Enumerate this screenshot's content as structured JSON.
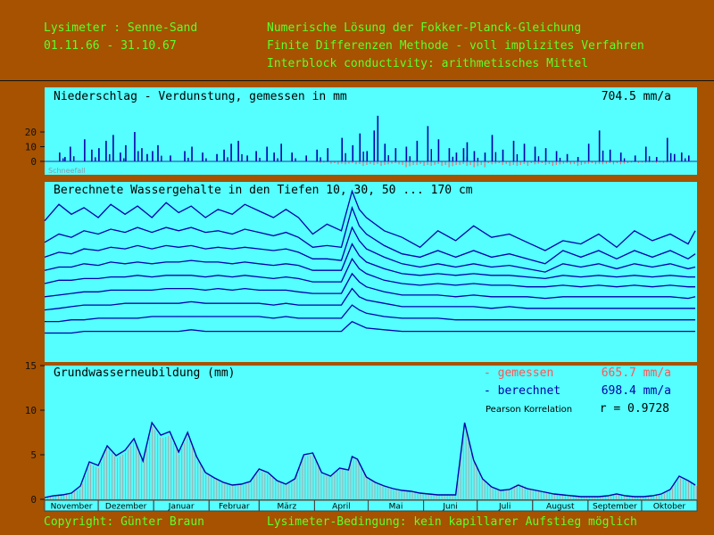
{
  "header": {
    "left_line1": "Lysimeter : Senne-Sand",
    "left_line2": "01.11.66 - 31.10.67",
    "right_line1": "Numerische Lösung der Fokker-Planck-Gleichung",
    "right_line2": "Finite Differenzen Methode - voll implizites Verfahren",
    "right_line3": "Interblock conductivity: arithmetisches Mittel"
  },
  "footer": {
    "left": "Copyright: Günter Braun",
    "right": "Lysimeter-Bedingung: kein kapillarer Aufstieg möglich"
  },
  "colors": {
    "background": "#a65200",
    "panel": "#55ffff",
    "green_text": "#5cff2e",
    "measured": "#ff5555",
    "calculated": "#0000aa",
    "bars": "#a8a8a8"
  },
  "chart_data": [
    {
      "type": "bar",
      "title": "Niederschlag - Verdunstung, gemessen in mm",
      "total": "704.5 mm/a",
      "annotation": "Schneefall",
      "yticks": [
        "20",
        "10",
        "0"
      ],
      "ylim": [
        -6,
        27
      ],
      "series": [
        {
          "name": "Niederschlag",
          "x_day": [
            8,
            11,
            14,
            22,
            26,
            30,
            34,
            38,
            42,
            45,
            50,
            54,
            57,
            60,
            63,
            70,
            78,
            82,
            88,
            96,
            100,
            104,
            108,
            113,
            118,
            124,
            128,
            132,
            138,
            146,
            152,
            158,
            166,
            172,
            176,
            180,
            184,
            186,
            190,
            196,
            202,
            208,
            214,
            220,
            226,
            230,
            234,
            236,
            240,
            246,
            250,
            256,
            262,
            268,
            274,
            280,
            286,
            292,
            298,
            304,
            310,
            316,
            322,
            330,
            336,
            342,
            348,
            352,
            356,
            360
          ],
          "values": [
            6,
            3,
            10,
            15,
            8,
            9,
            14,
            18,
            6,
            11,
            20,
            9,
            5,
            7,
            11,
            4,
            7,
            10,
            6,
            5,
            8,
            12,
            14,
            4,
            7,
            10,
            6,
            12,
            6,
            4,
            8,
            9,
            16,
            11,
            19,
            7,
            21,
            31,
            12,
            9,
            10,
            14,
            24,
            15,
            9,
            6,
            9,
            13,
            7,
            6,
            18,
            8,
            14,
            12,
            10,
            9,
            7,
            5,
            3,
            12,
            21,
            8,
            6,
            4,
            10,
            3,
            16,
            5,
            6,
            4
          ]
        },
        {
          "name": "Verdunstung",
          "x_day": [
            152,
            160,
            168,
            176,
            184,
            192,
            200,
            208,
            216,
            224,
            232,
            240,
            248,
            256,
            264,
            272,
            280,
            288,
            296,
            304,
            312,
            320,
            328,
            336,
            344
          ],
          "values": [
            -1,
            -2,
            -2,
            -3,
            -3,
            -2,
            -4,
            -3,
            -3,
            -4,
            -3,
            -4,
            -2,
            -3,
            -3,
            -2,
            -3,
            -2,
            -3,
            -2,
            -2,
            -2,
            -1,
            -1,
            -1
          ]
        }
      ]
    },
    {
      "type": "line",
      "title": "Berechnete Wassergehalte in den Tiefen 10, 30, 50 ... 170 cm",
      "x_day": [
        0,
        8,
        15,
        22,
        30,
        37,
        45,
        52,
        60,
        68,
        75,
        82,
        90,
        97,
        105,
        112,
        120,
        128,
        135,
        142,
        150,
        158,
        166,
        172,
        176,
        180,
        190,
        200,
        210,
        220,
        230,
        240,
        250,
        260,
        270,
        280,
        290,
        300,
        310,
        320,
        330,
        340,
        350,
        360,
        364
      ],
      "series": [
        {
          "name": "10 cm",
          "values": [
            0.78,
            0.88,
            0.82,
            0.86,
            0.8,
            0.88,
            0.82,
            0.87,
            0.8,
            0.89,
            0.83,
            0.87,
            0.8,
            0.85,
            0.82,
            0.88,
            0.84,
            0.8,
            0.85,
            0.8,
            0.7,
            0.76,
            0.72,
            0.96,
            0.85,
            0.8,
            0.72,
            0.68,
            0.62,
            0.72,
            0.66,
            0.75,
            0.68,
            0.7,
            0.65,
            0.6,
            0.66,
            0.64,
            0.7,
            0.62,
            0.72,
            0.66,
            0.7,
            0.64,
            0.72
          ]
        },
        {
          "name": "30 cm",
          "values": [
            0.65,
            0.7,
            0.68,
            0.72,
            0.7,
            0.73,
            0.71,
            0.74,
            0.71,
            0.74,
            0.72,
            0.74,
            0.71,
            0.72,
            0.7,
            0.73,
            0.71,
            0.69,
            0.71,
            0.68,
            0.62,
            0.63,
            0.62,
            0.86,
            0.75,
            0.7,
            0.63,
            0.58,
            0.56,
            0.6,
            0.56,
            0.6,
            0.56,
            0.58,
            0.55,
            0.52,
            0.6,
            0.56,
            0.6,
            0.55,
            0.6,
            0.56,
            0.6,
            0.55,
            0.58
          ]
        },
        {
          "name": "50 cm",
          "values": [
            0.56,
            0.59,
            0.58,
            0.61,
            0.6,
            0.62,
            0.61,
            0.63,
            0.61,
            0.63,
            0.62,
            0.63,
            0.61,
            0.62,
            0.61,
            0.62,
            0.61,
            0.6,
            0.61,
            0.59,
            0.55,
            0.55,
            0.54,
            0.74,
            0.66,
            0.61,
            0.56,
            0.52,
            0.5,
            0.52,
            0.5,
            0.52,
            0.5,
            0.51,
            0.49,
            0.47,
            0.52,
            0.5,
            0.52,
            0.49,
            0.52,
            0.5,
            0.52,
            0.49,
            0.5
          ]
        },
        {
          "name": "70 cm",
          "values": [
            0.48,
            0.5,
            0.5,
            0.52,
            0.51,
            0.53,
            0.52,
            0.53,
            0.52,
            0.53,
            0.53,
            0.54,
            0.53,
            0.53,
            0.52,
            0.53,
            0.52,
            0.51,
            0.52,
            0.51,
            0.48,
            0.48,
            0.48,
            0.64,
            0.57,
            0.53,
            0.49,
            0.46,
            0.45,
            0.46,
            0.45,
            0.46,
            0.45,
            0.45,
            0.44,
            0.43,
            0.45,
            0.44,
            0.45,
            0.44,
            0.45,
            0.44,
            0.45,
            0.44,
            0.44
          ]
        },
        {
          "name": "90 cm",
          "values": [
            0.4,
            0.42,
            0.42,
            0.43,
            0.43,
            0.44,
            0.44,
            0.45,
            0.44,
            0.45,
            0.45,
            0.45,
            0.44,
            0.45,
            0.44,
            0.45,
            0.44,
            0.43,
            0.44,
            0.43,
            0.41,
            0.41,
            0.41,
            0.55,
            0.49,
            0.46,
            0.42,
            0.4,
            0.39,
            0.4,
            0.39,
            0.4,
            0.39,
            0.39,
            0.38,
            0.38,
            0.39,
            0.38,
            0.39,
            0.38,
            0.39,
            0.38,
            0.39,
            0.38,
            0.38
          ]
        },
        {
          "name": "110 cm",
          "values": [
            0.32,
            0.33,
            0.34,
            0.35,
            0.35,
            0.36,
            0.36,
            0.36,
            0.36,
            0.37,
            0.37,
            0.37,
            0.36,
            0.37,
            0.36,
            0.37,
            0.36,
            0.36,
            0.36,
            0.35,
            0.34,
            0.34,
            0.34,
            0.46,
            0.41,
            0.38,
            0.35,
            0.33,
            0.33,
            0.33,
            0.32,
            0.33,
            0.32,
            0.32,
            0.32,
            0.31,
            0.32,
            0.32,
            0.32,
            0.32,
            0.32,
            0.32,
            0.32,
            0.31,
            0.32
          ]
        },
        {
          "name": "130 cm",
          "values": [
            0.24,
            0.25,
            0.26,
            0.27,
            0.27,
            0.27,
            0.28,
            0.28,
            0.28,
            0.28,
            0.28,
            0.29,
            0.28,
            0.28,
            0.28,
            0.28,
            0.28,
            0.27,
            0.28,
            0.27,
            0.27,
            0.27,
            0.27,
            0.37,
            0.32,
            0.3,
            0.28,
            0.26,
            0.26,
            0.26,
            0.26,
            0.26,
            0.25,
            0.26,
            0.25,
            0.25,
            0.25,
            0.25,
            0.25,
            0.25,
            0.25,
            0.25,
            0.25,
            0.25,
            0.25
          ]
        },
        {
          "name": "150 cm",
          "values": [
            0.17,
            0.17,
            0.18,
            0.18,
            0.19,
            0.19,
            0.19,
            0.19,
            0.2,
            0.2,
            0.2,
            0.2,
            0.2,
            0.2,
            0.2,
            0.2,
            0.2,
            0.19,
            0.2,
            0.19,
            0.19,
            0.19,
            0.19,
            0.27,
            0.24,
            0.22,
            0.2,
            0.19,
            0.19,
            0.19,
            0.18,
            0.18,
            0.18,
            0.18,
            0.18,
            0.18,
            0.18,
            0.18,
            0.18,
            0.18,
            0.18,
            0.18,
            0.18,
            0.18,
            0.18
          ]
        },
        {
          "name": "170 cm",
          "values": [
            0.1,
            0.1,
            0.1,
            0.11,
            0.11,
            0.11,
            0.11,
            0.11,
            0.11,
            0.11,
            0.11,
            0.12,
            0.11,
            0.11,
            0.11,
            0.11,
            0.11,
            0.11,
            0.11,
            0.11,
            0.11,
            0.11,
            0.11,
            0.17,
            0.15,
            0.13,
            0.12,
            0.11,
            0.11,
            0.11,
            0.11,
            0.11,
            0.11,
            0.11,
            0.11,
            0.11,
            0.11,
            0.11,
            0.11,
            0.11,
            0.11,
            0.11,
            0.11,
            0.11,
            0.11
          ]
        }
      ]
    },
    {
      "type": "area",
      "title": "Grundwasserneubildung (mm)",
      "legend": [
        {
          "label": "- gemessen",
          "value": "665.7 mm/a"
        },
        {
          "label": "- berechnet",
          "value": "698.4 mm/a"
        }
      ],
      "correlation_label": "Pearson Korrelation",
      "correlation_value": "r =  0.9728",
      "yticks": [
        "15",
        "10",
        "5",
        "0"
      ],
      "ylim": [
        0,
        15
      ],
      "x_day": [
        0,
        5,
        10,
        15,
        20,
        25,
        30,
        35,
        40,
        45,
        50,
        55,
        60,
        65,
        70,
        75,
        80,
        85,
        90,
        95,
        100,
        105,
        110,
        115,
        120,
        125,
        130,
        135,
        140,
        145,
        150,
        155,
        160,
        165,
        170,
        172,
        175,
        180,
        185,
        190,
        195,
        200,
        205,
        210,
        215,
        220,
        225,
        230,
        235,
        240,
        245,
        250,
        255,
        260,
        265,
        270,
        275,
        280,
        285,
        290,
        295,
        300,
        305,
        310,
        315,
        320,
        325,
        330,
        335,
        340,
        345,
        350,
        355,
        360,
        364
      ],
      "measured": [
        0.2,
        0.4,
        0.5,
        0.7,
        1.2,
        4.0,
        3.5,
        5.8,
        4.6,
        5.2,
        6.6,
        4.0,
        8.2,
        6.8,
        7.2,
        5.0,
        7.2,
        4.5,
        2.8,
        2.3,
        1.8,
        1.5,
        1.6,
        1.9,
        3.2,
        2.8,
        2.0,
        1.6,
        2.2,
        4.8,
        5.0,
        2.8,
        2.5,
        3.4,
        3.2,
        4.6,
        4.4,
        2.4,
        1.8,
        1.4,
        1.1,
        0.9,
        0.8,
        0.7,
        0.6,
        0.5,
        0.5,
        0.5,
        8.6,
        4.2,
        2.2,
        1.3,
        0.9,
        1.2,
        1.8,
        1.3,
        1.1,
        0.8,
        0.6,
        0.5,
        0.4,
        0.3,
        0.3,
        0.3,
        0.4,
        0.6,
        0.4,
        0.3,
        0.3,
        0.4,
        0.5,
        1.0,
        2.4,
        2.0,
        1.5
      ],
      "calculated": [
        0.2,
        0.4,
        0.5,
        0.7,
        1.5,
        4.2,
        3.8,
        6.0,
        4.9,
        5.5,
        6.8,
        4.3,
        8.6,
        7.2,
        7.6,
        5.3,
        7.5,
        4.8,
        3.0,
        2.4,
        1.9,
        1.6,
        1.7,
        2.0,
        3.4,
        3.0,
        2.1,
        1.7,
        2.3,
        5.0,
        5.2,
        3.0,
        2.6,
        3.5,
        3.3,
        4.8,
        4.5,
        2.5,
        1.9,
        1.5,
        1.2,
        1.0,
        0.9,
        0.7,
        0.6,
        0.5,
        0.5,
        0.5,
        8.6,
        4.4,
        2.3,
        1.4,
        1.0,
        1.1,
        1.6,
        1.2,
        1.0,
        0.8,
        0.6,
        0.5,
        0.4,
        0.3,
        0.3,
        0.3,
        0.4,
        0.6,
        0.4,
        0.3,
        0.3,
        0.4,
        0.6,
        1.1,
        2.6,
        2.1,
        1.6
      ],
      "months": [
        "November",
        "Dezember",
        "Januar",
        "Februar",
        "März",
        "April",
        "Mai",
        "Juni",
        "Juli",
        "August",
        "September",
        "Oktober"
      ],
      "month_days": [
        30,
        31,
        31,
        28,
        31,
        30,
        31,
        30,
        31,
        31,
        30,
        31
      ]
    }
  ]
}
